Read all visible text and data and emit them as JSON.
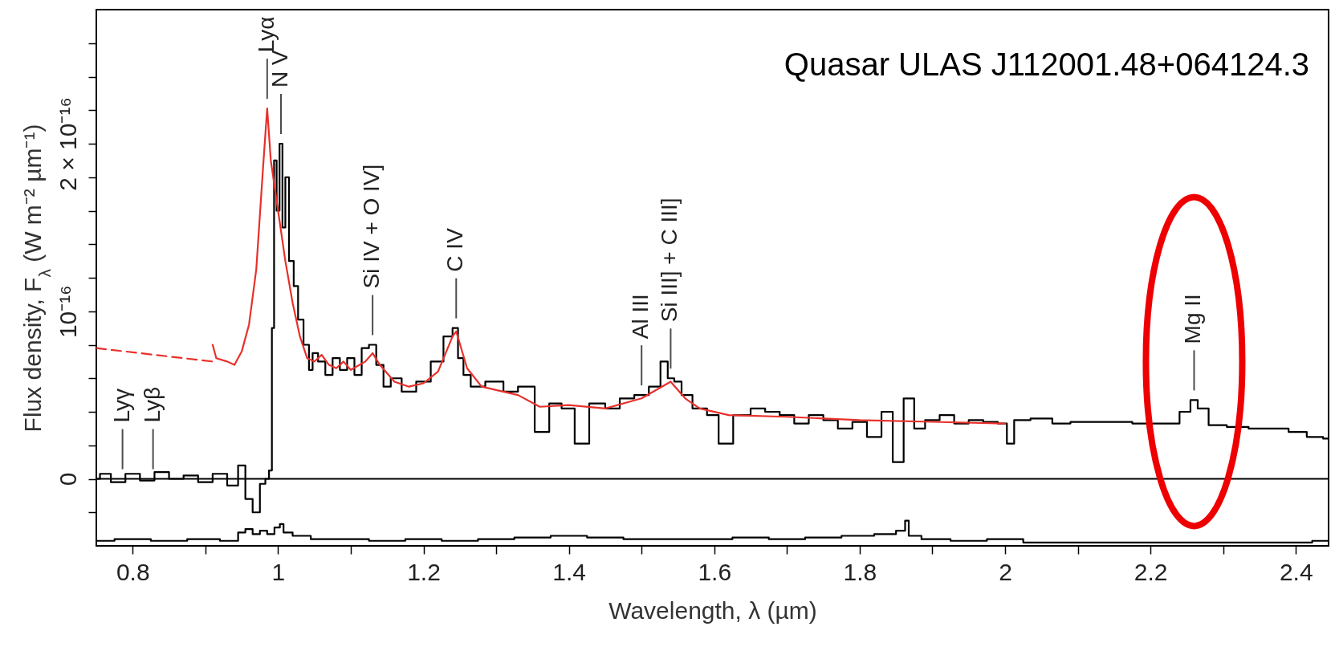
{
  "chart_data": {
    "type": "line",
    "title": "Quasar ULAS J112001.48+064124.3",
    "xlabel": "Wavelength, λ (µm)",
    "ylabel": "Flux density, F$_{λ}$ (W m⁻² µm⁻¹)",
    "xlim": [
      0.75,
      2.445
    ],
    "ylim": [
      -4e-17,
      2.8e-16
    ],
    "xticks": [
      0.8,
      {
        "value": 0.9,
        "label": null
      },
      1,
      {
        "value": 1.1,
        "label": null
      },
      1.2,
      {
        "value": 1.3,
        "label": null
      },
      1.4,
      {
        "value": 1.5,
        "label": null
      },
      1.6,
      {
        "value": 1.7,
        "label": null
      },
      1.8,
      {
        "value": 1.9,
        "label": null
      },
      2,
      {
        "value": 2.1,
        "label": null
      },
      2.2,
      {
        "value": 2.3,
        "label": null
      },
      2.4
    ],
    "yticks": [
      {
        "value": -2e-17,
        "label": null
      },
      0,
      {
        "value": 2e-17,
        "label": null
      },
      {
        "value": 4e-17,
        "label": null
      },
      {
        "value": 6e-17,
        "label": null
      },
      {
        "value": 8e-17,
        "label": null
      },
      {
        "value": 1e-16,
        "label": "10⁻¹⁶"
      },
      {
        "value": 1.2e-16,
        "label": null
      },
      {
        "value": 1.4e-16,
        "label": null
      },
      {
        "value": 1.6e-16,
        "label": null
      },
      {
        "value": 1.8e-16,
        "label": null
      },
      {
        "value": 2e-16,
        "label": "2 × 10⁻¹⁶"
      },
      {
        "value": 2.2e-16,
        "label": null
      },
      {
        "value": 2.4e-16,
        "label": null
      },
      {
        "value": 2.6e-16,
        "label": null
      }
    ],
    "ref_lines": [
      {
        "axis": "y",
        "value": 0,
        "color": "#000000"
      }
    ],
    "annotations": [
      {
        "text": "Lyγ",
        "x": 0.786,
        "y": 0.0
      },
      {
        "text": "Lyβ",
        "x": 0.828,
        "y": 0.0
      },
      {
        "text": "Lyα",
        "x": 0.985,
        "y": 2.21e-16
      },
      {
        "text": "N V",
        "x": 1.004,
        "y": 2e-16
      },
      {
        "text": "Si IV + O IV]",
        "x": 1.13,
        "y": 8e-17
      },
      {
        "text": "C IV",
        "x": 1.245,
        "y": 9e-17
      },
      {
        "text": "Al III",
        "x": 1.5,
        "y": 5e-17
      },
      {
        "text": "Si III] + C III]",
        "x": 1.54,
        "y": 6e-17
      },
      {
        "text": "Mg II",
        "x": 2.26,
        "y": 4.7e-17
      }
    ],
    "series": [
      {
        "type": "step",
        "color": "#000000",
        "x": [
          0.75,
          0.76,
          0.78,
          0.8,
          0.82,
          0.84,
          0.86,
          0.88,
          0.9,
          0.92,
          0.94,
          0.95,
          0.96,
          0.97,
          0.98,
          0.985,
          0.99,
          0.993,
          0.996,
          1.0,
          1.004,
          1.008,
          1.012,
          1.018,
          1.025,
          1.03,
          1.04,
          1.045,
          1.05,
          1.06,
          1.07,
          1.08,
          1.09,
          1.1,
          1.11,
          1.12,
          1.13,
          1.14,
          1.15,
          1.16,
          1.18,
          1.2,
          1.22,
          1.235,
          1.245,
          1.25,
          1.26,
          1.27,
          1.3,
          1.32,
          1.34,
          1.366,
          1.38,
          1.4,
          1.416,
          1.44,
          1.46,
          1.48,
          1.5,
          1.52,
          1.532,
          1.54,
          1.55,
          1.56,
          1.58,
          1.6,
          1.612,
          1.64,
          1.66,
          1.68,
          1.7,
          1.72,
          1.74,
          1.76,
          1.78,
          1.8,
          1.82,
          1.84,
          1.851,
          1.87,
          1.88,
          1.9,
          1.92,
          1.94,
          1.96,
          1.98,
          2.0,
          2.005,
          2.02,
          2.05,
          2.08,
          2.1,
          2.15,
          2.2,
          2.23,
          2.25,
          2.26,
          2.27,
          2.29,
          2.32,
          2.35,
          2.38,
          2.4,
          2.43,
          2.445
        ],
        "values": [
          0.0,
          3e-18,
          -2e-18,
          3e-18,
          -1e-18,
          4e-18,
          0.0,
          2e-18,
          -2e-18,
          3e-18,
          -4e-18,
          8e-18,
          -1.2e-17,
          -2e-17,
          -3e-18,
          0.0,
          5e-18,
          9e-17,
          1.9e-16,
          1.6e-16,
          2e-16,
          1.5e-16,
          1.8e-16,
          1.3e-16,
          1.15e-16,
          9.5e-17,
          8e-17,
          6.5e-17,
          7.5e-17,
          7e-17,
          6.2e-17,
          7.2e-17,
          6.5e-17,
          7.2e-17,
          6.2e-17,
          7.8e-17,
          8e-17,
          6.8e-17,
          5.5e-17,
          6e-17,
          5.2e-17,
          5.8e-17,
          7e-17,
          8.5e-17,
          9e-17,
          7.2e-17,
          6.2e-17,
          5.5e-17,
          5.8e-17,
          5.2e-17,
          5.5e-17,
          2.8e-17,
          4.5e-17,
          4.2e-17,
          2.1e-17,
          4.5e-17,
          4.2e-17,
          4.8e-17,
          5e-17,
          5.5e-17,
          7e-17,
          6e-17,
          5.8e-17,
          5e-17,
          4.2e-17,
          3.8e-17,
          2.1e-17,
          3.8e-17,
          4.2e-17,
          4e-17,
          3.8e-17,
          3.3e-17,
          3.8e-17,
          3.5e-17,
          3e-17,
          3.4e-17,
          2.5e-17,
          4e-17,
          1e-17,
          4.8e-17,
          3e-17,
          3.5e-17,
          3.8e-17,
          3.3e-17,
          3.5e-17,
          3.4e-17,
          3.3e-17,
          2.1e-17,
          3.5e-17,
          3.6e-17,
          3.3e-17,
          3.4e-17,
          3.4e-17,
          3.3e-17,
          3.3e-17,
          4e-17,
          4.7e-17,
          4.2e-17,
          3.2e-17,
          3.1e-17,
          3e-17,
          3e-17,
          2.8e-17,
          2.5e-17,
          2.4e-17
        ]
      },
      {
        "type": "line",
        "color": "#e8302a",
        "line_style": "dashed",
        "x": [
          0.75,
          0.91
        ],
        "values": [
          7.8e-17,
          7e-17
        ]
      },
      {
        "type": "line",
        "color": "#e8302a",
        "x": [
          0.91,
          0.915,
          0.93,
          0.94,
          0.95,
          0.96,
          0.97,
          0.98,
          0.985,
          0.99,
          1.0,
          1.01,
          1.02,
          1.03,
          1.04,
          1.05,
          1.06,
          1.07,
          1.08,
          1.09,
          1.1,
          1.12,
          1.13,
          1.14,
          1.16,
          1.18,
          1.2,
          1.22,
          1.24,
          1.245,
          1.26,
          1.28,
          1.3,
          1.33,
          1.36,
          1.4,
          1.45,
          1.5,
          1.54,
          1.56,
          1.58,
          1.62,
          1.7,
          1.8,
          1.9,
          2.0
        ],
        "values": [
          8e-17,
          7.2e-17,
          7e-17,
          6.8e-17,
          7.6e-17,
          9.2e-17,
          1.25e-16,
          1.9e-16,
          2.21e-16,
          1.9e-16,
          1.6e-16,
          1.3e-16,
          1.05e-16,
          8.5e-17,
          7.2e-17,
          7e-17,
          7.4e-17,
          6.8e-17,
          6.6e-17,
          7e-17,
          6.5e-17,
          7e-17,
          7.5e-17,
          6.8e-17,
          5.8e-17,
          5.5e-17,
          5.7e-17,
          6.4e-17,
          8.5e-17,
          8.8e-17,
          6.6e-17,
          5.5e-17,
          5.3e-17,
          5e-17,
          4.3e-17,
          4.4e-17,
          4.2e-17,
          4.8e-17,
          5.8e-17,
          4.8e-17,
          4.2e-17,
          3.8e-17,
          3.7e-17,
          3.5e-17,
          3.4e-17,
          3.3e-17
        ]
      },
      {
        "type": "step",
        "color": "#000000",
        "x": [
          0.75,
          0.8,
          0.85,
          0.9,
          0.94,
          0.95,
          0.96,
          0.97,
          0.98,
          0.99,
          1.0,
          1.005,
          1.01,
          1.03,
          1.06,
          1.1,
          1.15,
          1.2,
          1.25,
          1.3,
          1.35,
          1.4,
          1.45,
          1.5,
          1.55,
          1.6,
          1.65,
          1.7,
          1.75,
          1.8,
          1.84,
          1.86,
          1.865,
          1.87,
          1.9,
          1.95,
          2.0,
          2.05,
          2.1,
          2.2,
          2.3,
          2.4,
          2.445
        ],
        "values": [
          -3.7e-17,
          -3.6e-17,
          -3.7e-17,
          -3.6e-17,
          -3.7e-17,
          -3.2e-17,
          -3e-17,
          -3.3e-17,
          -3.1e-17,
          -3.3e-17,
          -2.9e-17,
          -2.7e-17,
          -3.2e-17,
          -3.4e-17,
          -3.6e-17,
          -3.6e-17,
          -3.7e-17,
          -3.6e-17,
          -3.7e-17,
          -3.6e-17,
          -3.5e-17,
          -3.4e-17,
          -3.5e-17,
          -3.6e-17,
          -3.6e-17,
          -3.6e-17,
          -3.5e-17,
          -3.6e-17,
          -3.5e-17,
          -3.4e-17,
          -3.3e-17,
          -3.1e-17,
          -2.5e-17,
          -3.4e-17,
          -3.6e-17,
          -3.7e-17,
          -3.6e-17,
          -3.8e-17,
          -3.8e-17,
          -3.8e-17,
          -3.8e-17,
          -3.8e-17,
          -3.7e-17
        ]
      }
    ]
  }
}
